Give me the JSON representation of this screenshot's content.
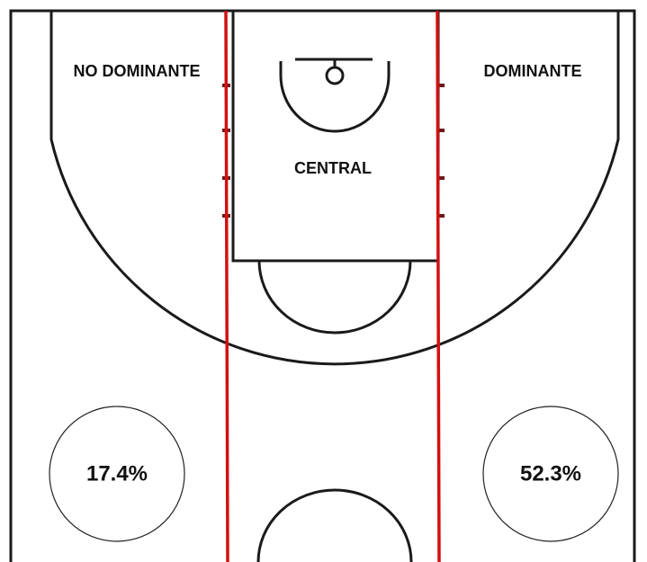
{
  "zones": {
    "left": {
      "label": "NO DOMINANTE",
      "percentage": "17.4%"
    },
    "center": {
      "label": "CENTRAL"
    },
    "right": {
      "label": "DOMINANTE",
      "percentage": "52.3%"
    }
  }
}
